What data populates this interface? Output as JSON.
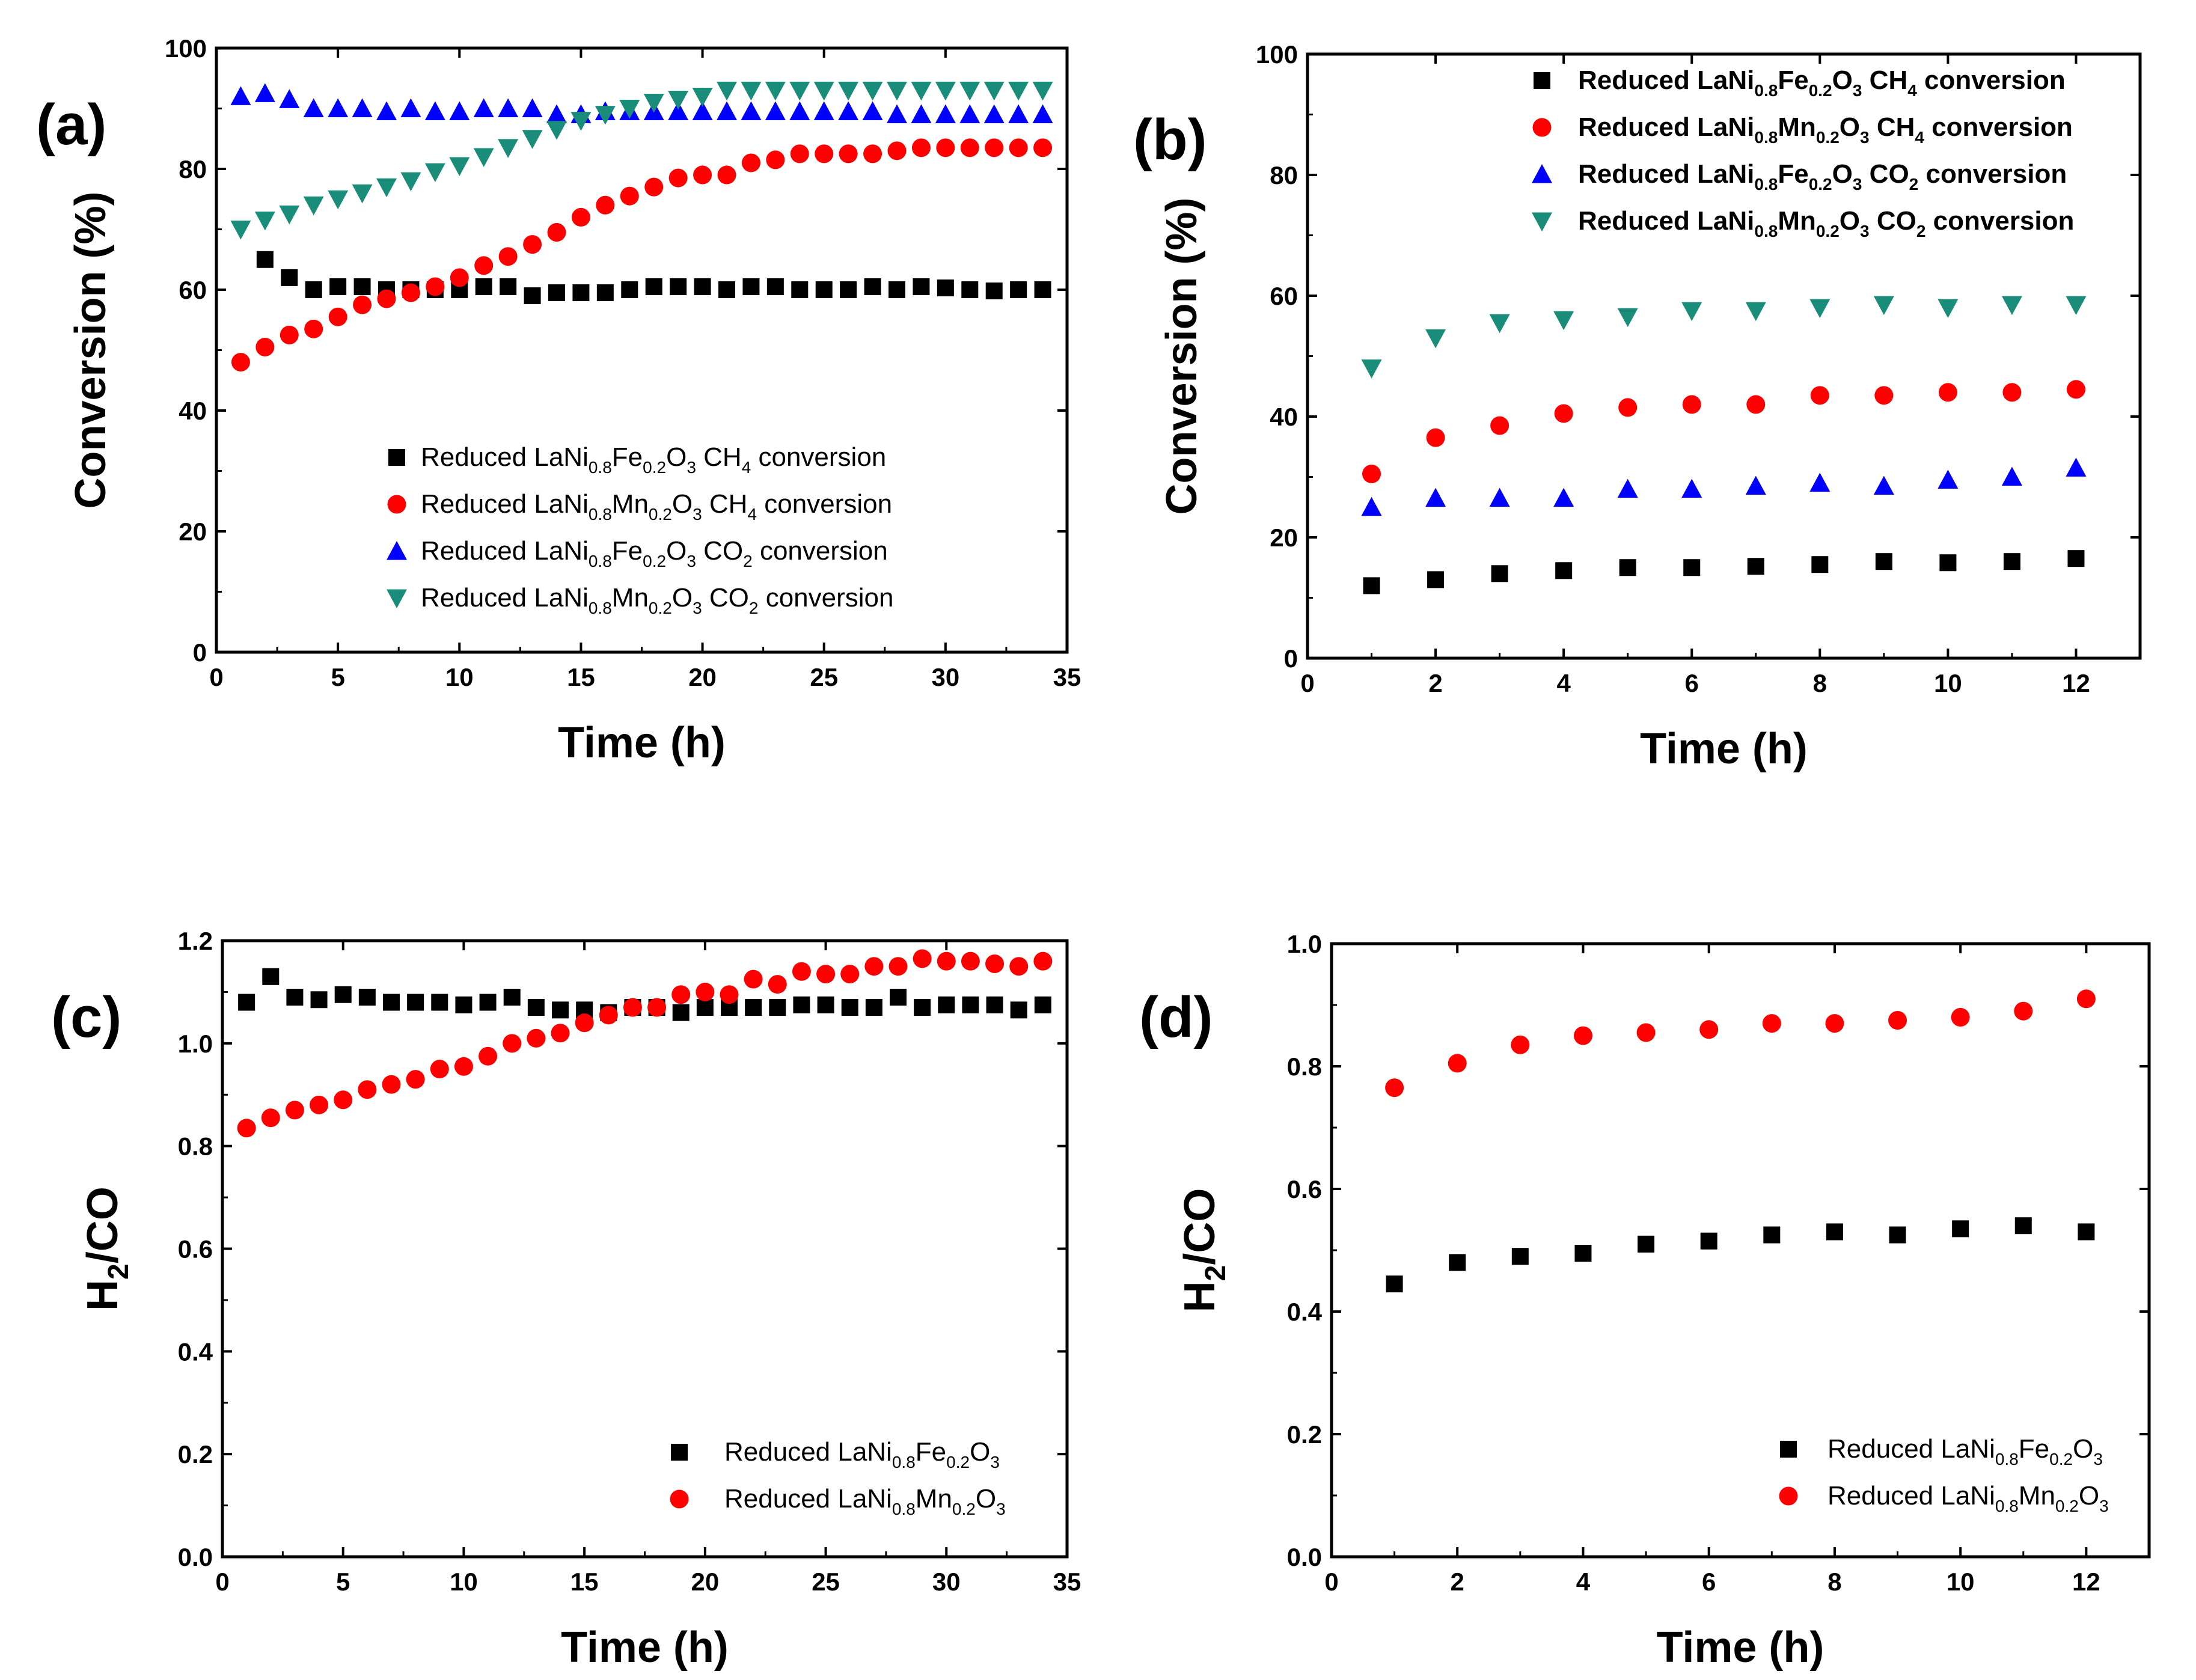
{
  "chart_data": [
    {
      "id": "a",
      "type": "scatter",
      "panel_label": "(a)",
      "xlabel": "Time (h)",
      "ylabel": "Conversion (%)",
      "xlim": [
        0,
        35
      ],
      "ylim": [
        0,
        100
      ],
      "xticks": [
        0,
        5,
        10,
        15,
        20,
        25,
        30,
        35
      ],
      "yticks": [
        0,
        20,
        40,
        60,
        80,
        100
      ],
      "ytick_decimals": 0,
      "legend_position": "bottom-right",
      "series": [
        {
          "name": "Reduced LaNi0.8Fe0.2O3 CH4 conversion",
          "legend": {
            "prefix": "Reduced LaNi",
            "sub1": "0.8",
            "mid": "Fe",
            "sub2": "0.2",
            "o": "O",
            "sub3": "3",
            "gas": "CH",
            "gas_sub": "4",
            "suffix": " conversion"
          },
          "marker": "square",
          "color": "#000000",
          "x": [
            2,
            3,
            4,
            5,
            6,
            7,
            8,
            9,
            10,
            11,
            12,
            13,
            14,
            15,
            16,
            17,
            18,
            19,
            20,
            21,
            22,
            23,
            24,
            25,
            26,
            27,
            28,
            29,
            30,
            31,
            32,
            33,
            34
          ],
          "y": [
            65,
            62,
            60,
            60.5,
            60.5,
            60,
            60,
            60,
            60,
            60.5,
            60.5,
            59,
            59.5,
            59.5,
            59.5,
            60,
            60.5,
            60.5,
            60.5,
            60,
            60.5,
            60.5,
            60,
            60,
            60,
            60.5,
            60,
            60.5,
            60.3,
            60,
            59.8,
            60,
            60
          ]
        },
        {
          "name": "Reduced LaNi0.8Mn0.2O3 CH4 conversion",
          "legend": {
            "prefix": "Reduced LaNi",
            "sub1": "0.8",
            "mid": "Mn",
            "sub2": "0.2",
            "o": "O",
            "sub3": "3",
            "gas": "CH",
            "gas_sub": "4",
            "suffix": " conversion"
          },
          "marker": "circle",
          "color": "#ff0000",
          "x": [
            1,
            2,
            3,
            4,
            5,
            6,
            7,
            8,
            9,
            10,
            11,
            12,
            13,
            14,
            15,
            16,
            17,
            18,
            19,
            20,
            21,
            22,
            23,
            24,
            25,
            26,
            27,
            28,
            29,
            30,
            31,
            32,
            33,
            34
          ],
          "y": [
            48,
            50.5,
            52.5,
            53.5,
            55.5,
            57.5,
            58.5,
            59.5,
            60.5,
            62,
            64,
            65.5,
            67.5,
            69.5,
            72,
            74,
            75.5,
            77,
            78.5,
            79,
            79,
            81,
            81.5,
            82.5,
            82.5,
            82.5,
            82.5,
            83,
            83.5,
            83.5,
            83.5,
            83.5,
            83.5,
            83.5
          ]
        },
        {
          "name": "Reduced LaNi0.8Fe0.2O3 CO2 conversion",
          "legend": {
            "prefix": "Reduced LaNi",
            "sub1": "0.8",
            "mid": "Fe",
            "sub2": "0.2",
            "o": "O",
            "sub3": "3",
            "gas": "CO",
            "gas_sub": "2",
            "suffix": " conversion"
          },
          "marker": "triangle-up",
          "color": "#0000ff",
          "x": [
            1,
            2,
            3,
            4,
            5,
            6,
            7,
            8,
            9,
            10,
            11,
            12,
            13,
            14,
            15,
            16,
            17,
            18,
            19,
            20,
            21,
            22,
            23,
            24,
            25,
            26,
            27,
            28,
            29,
            30,
            31,
            32,
            33,
            34
          ],
          "y": [
            92,
            92.5,
            91.5,
            90,
            90,
            90,
            89.5,
            90,
            89.5,
            89.5,
            90,
            90,
            90,
            89,
            89,
            89.5,
            89.5,
            89.5,
            89.5,
            89.5,
            89.5,
            89.5,
            89.5,
            89.5,
            89.5,
            89.5,
            89.5,
            89,
            89,
            89,
            89,
            89,
            89,
            89
          ]
        },
        {
          "name": "Reduced LaNi0.8Mn0.2O3 CO2 conversion",
          "legend": {
            "prefix": "Reduced LaNi",
            "sub1": "0.8",
            "mid": "Mn",
            "sub2": "0.2",
            "o": "O",
            "sub3": "3",
            "gas": "CO",
            "gas_sub": "2",
            "suffix": " conversion"
          },
          "marker": "triangle-down",
          "color": "#1a8c7a",
          "x": [
            1,
            2,
            3,
            4,
            5,
            6,
            7,
            8,
            9,
            10,
            11,
            12,
            13,
            14,
            15,
            16,
            17,
            18,
            19,
            20,
            21,
            22,
            23,
            24,
            25,
            26,
            27,
            28,
            29,
            30,
            31,
            32,
            33,
            34
          ],
          "y": [
            70,
            71.5,
            72.5,
            74,
            75,
            76,
            77,
            78,
            79.5,
            80.5,
            82,
            83.5,
            85,
            86.5,
            88,
            89,
            90,
            91,
            91.5,
            92,
            93,
            93,
            93,
            93,
            93,
            93,
            93,
            93,
            93,
            93,
            93,
            93,
            93,
            93
          ]
        }
      ]
    },
    {
      "id": "b",
      "type": "scatter",
      "panel_label": "(b)",
      "xlabel": "Time (h)",
      "ylabel": "Conversion (%)",
      "xlim": [
        0,
        13
      ],
      "ylim": [
        0,
        100
      ],
      "xticks": [
        0,
        2,
        4,
        6,
        8,
        10,
        12
      ],
      "yticks": [
        0,
        20,
        40,
        60,
        80,
        100
      ],
      "ytick_decimals": 0,
      "legend_position": "top-right",
      "series": [
        {
          "name": "Reduced LaNi0.8Fe0.2O3 CH4 conversion",
          "legend": {
            "prefix": "Reduced LaNi",
            "sub1": "0.8",
            "mid": "Fe",
            "sub2": "0.2",
            "o": "O",
            "sub3": "3",
            "gas": "CH",
            "gas_sub": "4",
            "suffix": " conversion"
          },
          "marker": "square",
          "color": "#000000",
          "x": [
            1,
            2,
            3,
            4,
            5,
            6,
            7,
            8,
            9,
            10,
            11,
            12
          ],
          "y": [
            12,
            13,
            14,
            14.5,
            15,
            15,
            15.2,
            15.5,
            16,
            15.8,
            16,
            16.5
          ]
        },
        {
          "name": "Reduced LaNi0.8Mn0.2O3 CH4 conversion",
          "legend": {
            "prefix": "Reduced LaNi",
            "sub1": "0.8",
            "mid": "Mn",
            "sub2": "0.2",
            "o": "O",
            "sub3": "3",
            "gas": "CH",
            "gas_sub": "4",
            "suffix": " conversion"
          },
          "marker": "circle",
          "color": "#ff0000",
          "x": [
            1,
            2,
            3,
            4,
            5,
            6,
            7,
            8,
            9,
            10,
            11,
            12
          ],
          "y": [
            30.5,
            36.5,
            38.5,
            40.5,
            41.5,
            42,
            42,
            43.5,
            43.5,
            44,
            44,
            44.5
          ]
        },
        {
          "name": "Reduced LaNi0.8Fe0.2O3 CO2 conversion",
          "legend": {
            "prefix": "Reduced LaNi",
            "sub1": "0.8",
            "mid": "Fe",
            "sub2": "0.2",
            "o": "O",
            "sub3": "3",
            "gas": "CO",
            "gas_sub": "2",
            "suffix": " conversion"
          },
          "marker": "triangle-up",
          "color": "#0000ff",
          "x": [
            1,
            2,
            3,
            4,
            5,
            6,
            7,
            8,
            9,
            10,
            11,
            12
          ],
          "y": [
            25,
            26.5,
            26.5,
            26.5,
            28,
            28,
            28.5,
            29,
            28.5,
            29.5,
            30,
            31.5
          ]
        },
        {
          "name": "Reduced LaNi0.8Mn0.2O3 CO2 conversion",
          "legend": {
            "prefix": "Reduced LaNi",
            "sub1": "0.8",
            "mid": "Mn",
            "sub2": "0.2",
            "o": "O",
            "sub3": "3",
            "gas": "CO",
            "gas_sub": "2",
            "suffix": " conversion"
          },
          "marker": "triangle-down",
          "color": "#1a8c7a",
          "x": [
            1,
            2,
            3,
            4,
            5,
            6,
            7,
            8,
            9,
            10,
            11,
            12
          ],
          "y": [
            48,
            53,
            55.5,
            56,
            56.5,
            57.5,
            57.5,
            58,
            58.5,
            58,
            58.5,
            58.5
          ]
        }
      ]
    },
    {
      "id": "c",
      "type": "scatter",
      "panel_label": "(c)",
      "xlabel": "Time (h)",
      "ylabel": "H2/CO",
      "ylabel_parts": {
        "a": "H",
        "sub": "2",
        "b": "/CO"
      },
      "xlim": [
        0,
        35
      ],
      "ylim": [
        0,
        1.2
      ],
      "xticks": [
        0,
        5,
        10,
        15,
        20,
        25,
        30,
        35
      ],
      "yticks": [
        0.0,
        0.2,
        0.4,
        0.6,
        0.8,
        1.0,
        1.2
      ],
      "ytick_decimals": 1,
      "legend_position": "bottom-right",
      "series": [
        {
          "name": "Reduced LaNi0.8Fe0.2O3",
          "legend": {
            "prefix": "Reduced LaNi",
            "sub1": "0.8",
            "mid": "Fe",
            "sub2": "0.2",
            "o": "O",
            "sub3": "3",
            "gas": "",
            "gas_sub": "",
            "suffix": ""
          },
          "marker": "square",
          "color": "#000000",
          "x": [
            1,
            2,
            3,
            4,
            5,
            6,
            7,
            8,
            9,
            10,
            11,
            12,
            13,
            14,
            15,
            16,
            17,
            18,
            19,
            20,
            21,
            22,
            23,
            24,
            25,
            26,
            27,
            28,
            29,
            30,
            31,
            32,
            33,
            34
          ],
          "y": [
            1.08,
            1.13,
            1.09,
            1.085,
            1.095,
            1.09,
            1.08,
            1.08,
            1.08,
            1.075,
            1.08,
            1.09,
            1.07,
            1.065,
            1.065,
            1.06,
            1.07,
            1.07,
            1.06,
            1.07,
            1.07,
            1.07,
            1.07,
            1.075,
            1.075,
            1.07,
            1.07,
            1.09,
            1.07,
            1.075,
            1.075,
            1.075,
            1.065,
            1.075
          ]
        },
        {
          "name": "Reduced LaNi0.8Mn0.2O3",
          "legend": {
            "prefix": "Reduced LaNi",
            "sub1": "0.8",
            "mid": "Mn",
            "sub2": "0.2",
            "o": "O",
            "sub3": "3",
            "gas": "",
            "gas_sub": "",
            "suffix": ""
          },
          "marker": "circle",
          "color": "#ff0000",
          "x": [
            1,
            2,
            3,
            4,
            5,
            6,
            7,
            8,
            9,
            10,
            11,
            12,
            13,
            14,
            15,
            16,
            17,
            18,
            19,
            20,
            21,
            22,
            23,
            24,
            25,
            26,
            27,
            28,
            29,
            30,
            31,
            32,
            33,
            34
          ],
          "y": [
            0.835,
            0.855,
            0.87,
            0.88,
            0.89,
            0.91,
            0.92,
            0.93,
            0.95,
            0.955,
            0.975,
            1.0,
            1.01,
            1.02,
            1.04,
            1.055,
            1.07,
            1.07,
            1.095,
            1.1,
            1.095,
            1.125,
            1.115,
            1.14,
            1.135,
            1.135,
            1.15,
            1.15,
            1.165,
            1.16,
            1.16,
            1.155,
            1.15,
            1.16
          ]
        }
      ]
    },
    {
      "id": "d",
      "type": "scatter",
      "panel_label": "(d)",
      "xlabel": "Time (h)",
      "ylabel": "H2/CO",
      "ylabel_parts": {
        "a": "H",
        "sub": "2",
        "b": "/CO"
      },
      "xlim": [
        0,
        13
      ],
      "ylim": [
        0,
        1.0
      ],
      "xticks": [
        0,
        2,
        4,
        6,
        8,
        10,
        12
      ],
      "yticks": [
        0.0,
        0.2,
        0.4,
        0.6,
        0.8,
        1.0
      ],
      "ytick_decimals": 1,
      "legend_position": "bottom-right",
      "series": [
        {
          "name": "Reduced LaNi0.8Fe0.2O3",
          "legend": {
            "prefix": "Reduced LaNi",
            "sub1": "0.8",
            "mid": "Fe",
            "sub2": "0.2",
            "o": "O",
            "sub3": "3",
            "gas": "",
            "gas_sub": "",
            "suffix": ""
          },
          "marker": "square",
          "color": "#000000",
          "x": [
            1,
            2,
            3,
            4,
            5,
            6,
            7,
            8,
            9,
            10,
            11,
            12
          ],
          "y": [
            0.445,
            0.48,
            0.49,
            0.495,
            0.51,
            0.515,
            0.525,
            0.53,
            0.525,
            0.535,
            0.54,
            0.53
          ]
        },
        {
          "name": "Reduced LaNi0.8Mn0.2O3",
          "legend": {
            "prefix": "Reduced LaNi",
            "sub1": "0.8",
            "mid": "Mn",
            "sub2": "0.2",
            "o": "O",
            "sub3": "3",
            "gas": "",
            "gas_sub": "",
            "suffix": ""
          },
          "marker": "circle",
          "color": "#ff0000",
          "x": [
            1,
            2,
            3,
            4,
            5,
            6,
            7,
            8,
            9,
            10,
            11,
            12
          ],
          "y": [
            0.765,
            0.805,
            0.835,
            0.85,
            0.855,
            0.86,
            0.87,
            0.87,
            0.875,
            0.88,
            0.89,
            0.91
          ]
        }
      ]
    }
  ]
}
